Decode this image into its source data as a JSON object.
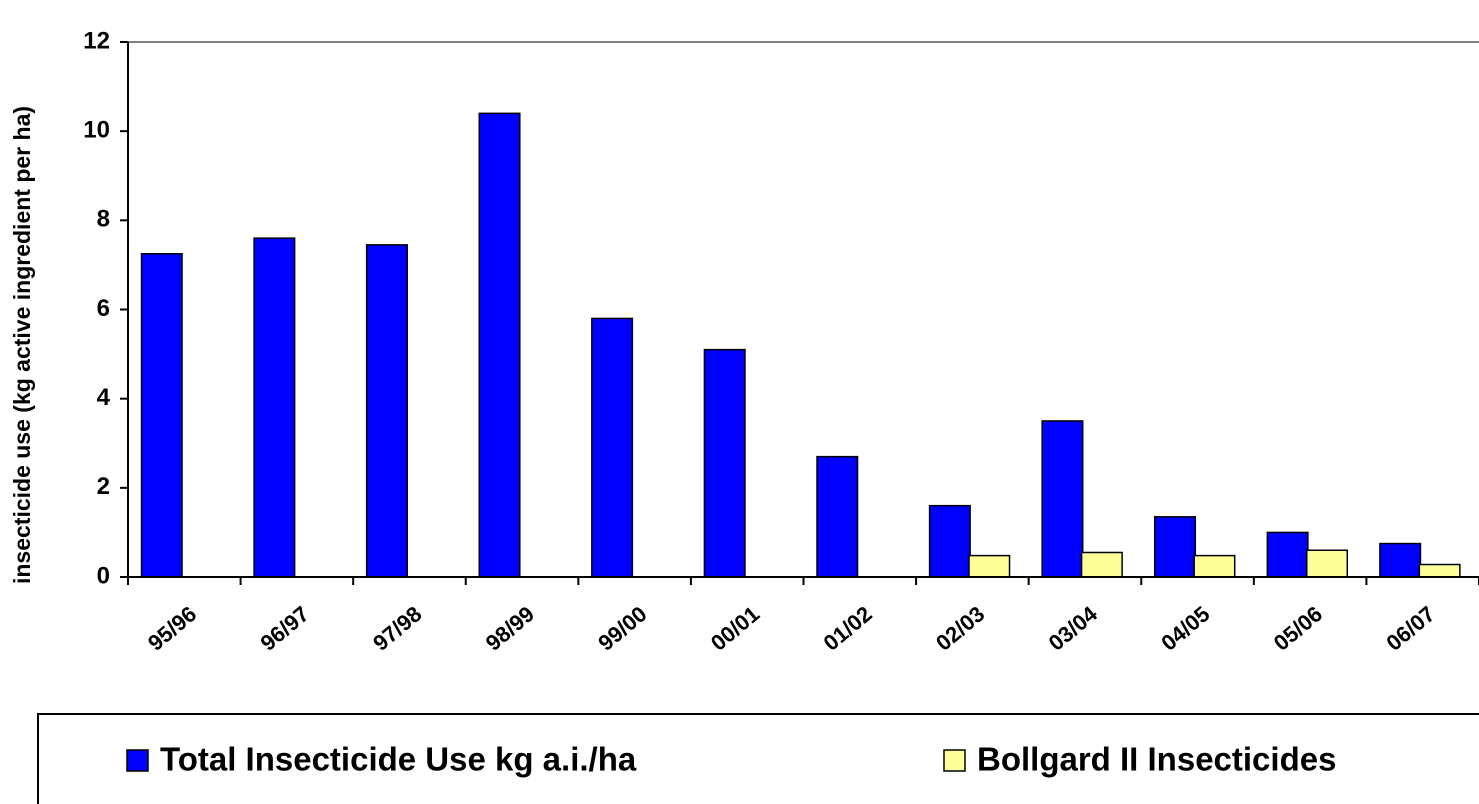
{
  "chart_data": {
    "type": "bar",
    "y_label": "insecticide use (kg active ingredient per ha)",
    "categories": [
      "95/96",
      "96/97",
      "97/98",
      "98/99",
      "99/00",
      "00/01",
      "01/02",
      "02/03",
      "03/04",
      "04/05",
      "05/06",
      "06/07"
    ],
    "series": [
      {
        "name": "Total Insecticide Use kg a.i./ha",
        "color": "#0000ff",
        "values": [
          7.25,
          7.6,
          7.45,
          10.4,
          5.8,
          5.1,
          2.7,
          1.6,
          3.5,
          1.35,
          1.0,
          0.75
        ]
      },
      {
        "name": "Bollgard II Insecticides",
        "color": "#ffff99",
        "values": [
          null,
          null,
          null,
          null,
          null,
          null,
          null,
          0.48,
          0.55,
          0.48,
          0.6,
          0.28
        ]
      }
    ],
    "ylim": [
      0,
      12
    ],
    "yticks": [
      0,
      2,
      4,
      6,
      8,
      10,
      12
    ],
    "grid": false,
    "legend": "bottom"
  }
}
